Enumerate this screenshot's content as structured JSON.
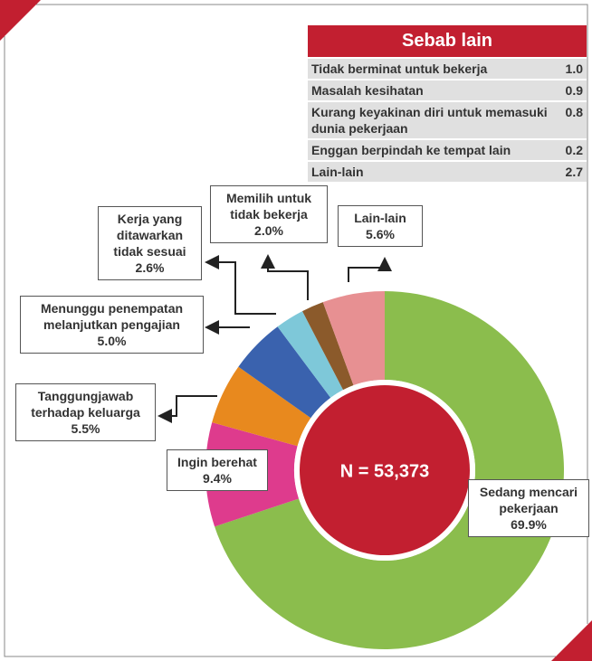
{
  "chart_data": {
    "type": "donut",
    "categories": [
      "Sedang mencari pekerjaan",
      "Ingin berehat",
      "Tanggungjawab terhadap keluarga",
      "Menunggu penempatan melanjutkan pengajian",
      "Kerja yang ditawarkan tidak sesuai",
      "Memilih untuk tidak bekerja",
      "Lain-lain"
    ],
    "values": [
      69.9,
      9.4,
      5.5,
      5.0,
      2.6,
      2.0,
      5.6
    ],
    "value_labels": [
      "69.9%",
      "9.4%",
      "5.5%",
      "5.0%",
      "2.6%",
      "2.0%",
      "5.6%"
    ],
    "colors": [
      "#8bbd4d",
      "#de3b8d",
      "#e8891e",
      "#3a62ae",
      "#7ec8d9",
      "#8b5a2b",
      "#e79092"
    ],
    "center_label": "N = 53,373"
  },
  "table": {
    "title": "Sebab lain",
    "rows": [
      [
        "Tidak berminat untuk bekerja",
        "1.0"
      ],
      [
        "Masalah kesihatan",
        "0.9"
      ],
      [
        "Kurang keyakinan diri untuk memasuki dunia pekerjaan",
        "0.8"
      ],
      [
        "Enggan berpindah ke tempat lain",
        "0.2"
      ],
      [
        "Lain-lain",
        "2.7"
      ]
    ]
  }
}
